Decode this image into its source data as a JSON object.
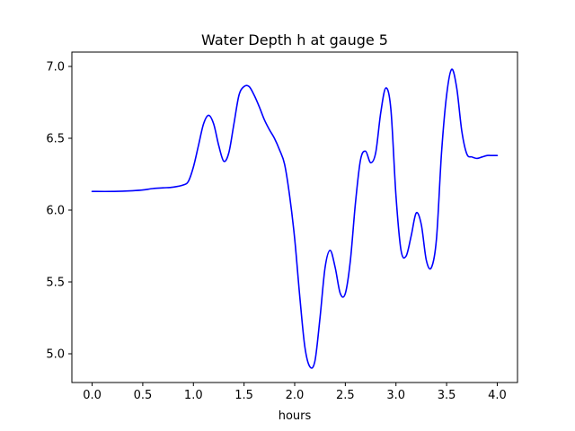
{
  "chart_data": {
    "type": "line",
    "title": "Water Depth h at gauge 5",
    "xlabel": "hours",
    "ylabel": "",
    "xlim": [
      -0.2,
      4.2
    ],
    "ylim": [
      4.8,
      7.1
    ],
    "xticks": [
      0.0,
      0.5,
      1.0,
      1.5,
      2.0,
      2.5,
      3.0,
      3.5,
      4.0
    ],
    "xtick_labels": [
      "0.0",
      "0.5",
      "1.0",
      "1.5",
      "2.0",
      "2.5",
      "3.0",
      "3.5",
      "4.0"
    ],
    "yticks": [
      5.0,
      5.5,
      6.0,
      6.5,
      7.0
    ],
    "ytick_labels": [
      "5.0",
      "5.5",
      "6.0",
      "6.5",
      "7.0"
    ],
    "grid": false,
    "series": [
      {
        "color": "#0000ff",
        "x": [
          0.0,
          0.2,
          0.4,
          0.5,
          0.6,
          0.7,
          0.8,
          0.9,
          0.95,
          1.0,
          1.05,
          1.1,
          1.15,
          1.2,
          1.25,
          1.3,
          1.35,
          1.4,
          1.45,
          1.5,
          1.55,
          1.6,
          1.65,
          1.7,
          1.75,
          1.8,
          1.85,
          1.9,
          1.95,
          2.0,
          2.05,
          2.1,
          2.15,
          2.2,
          2.25,
          2.3,
          2.35,
          2.4,
          2.45,
          2.5,
          2.55,
          2.6,
          2.65,
          2.7,
          2.75,
          2.8,
          2.85,
          2.9,
          2.95,
          3.0,
          3.05,
          3.1,
          3.15,
          3.2,
          3.25,
          3.3,
          3.35,
          3.4,
          3.45,
          3.5,
          3.55,
          3.6,
          3.65,
          3.7,
          3.75,
          3.8,
          3.85,
          3.9,
          3.95,
          4.0
        ],
        "y": [
          6.13,
          6.13,
          6.135,
          6.14,
          6.15,
          6.155,
          6.16,
          6.175,
          6.2,
          6.3,
          6.45,
          6.6,
          6.66,
          6.6,
          6.45,
          6.34,
          6.4,
          6.6,
          6.8,
          6.86,
          6.86,
          6.8,
          6.72,
          6.63,
          6.56,
          6.5,
          6.42,
          6.32,
          6.1,
          5.8,
          5.4,
          5.05,
          4.91,
          4.95,
          5.25,
          5.6,
          5.72,
          5.6,
          5.42,
          5.42,
          5.65,
          6.05,
          6.35,
          6.41,
          6.33,
          6.4,
          6.68,
          6.85,
          6.7,
          6.1,
          5.72,
          5.68,
          5.82,
          5.98,
          5.9,
          5.65,
          5.6,
          5.8,
          6.4,
          6.8,
          6.98,
          6.85,
          6.55,
          6.39,
          6.37,
          6.36,
          6.37,
          6.38,
          6.38,
          6.38
        ]
      }
    ]
  }
}
